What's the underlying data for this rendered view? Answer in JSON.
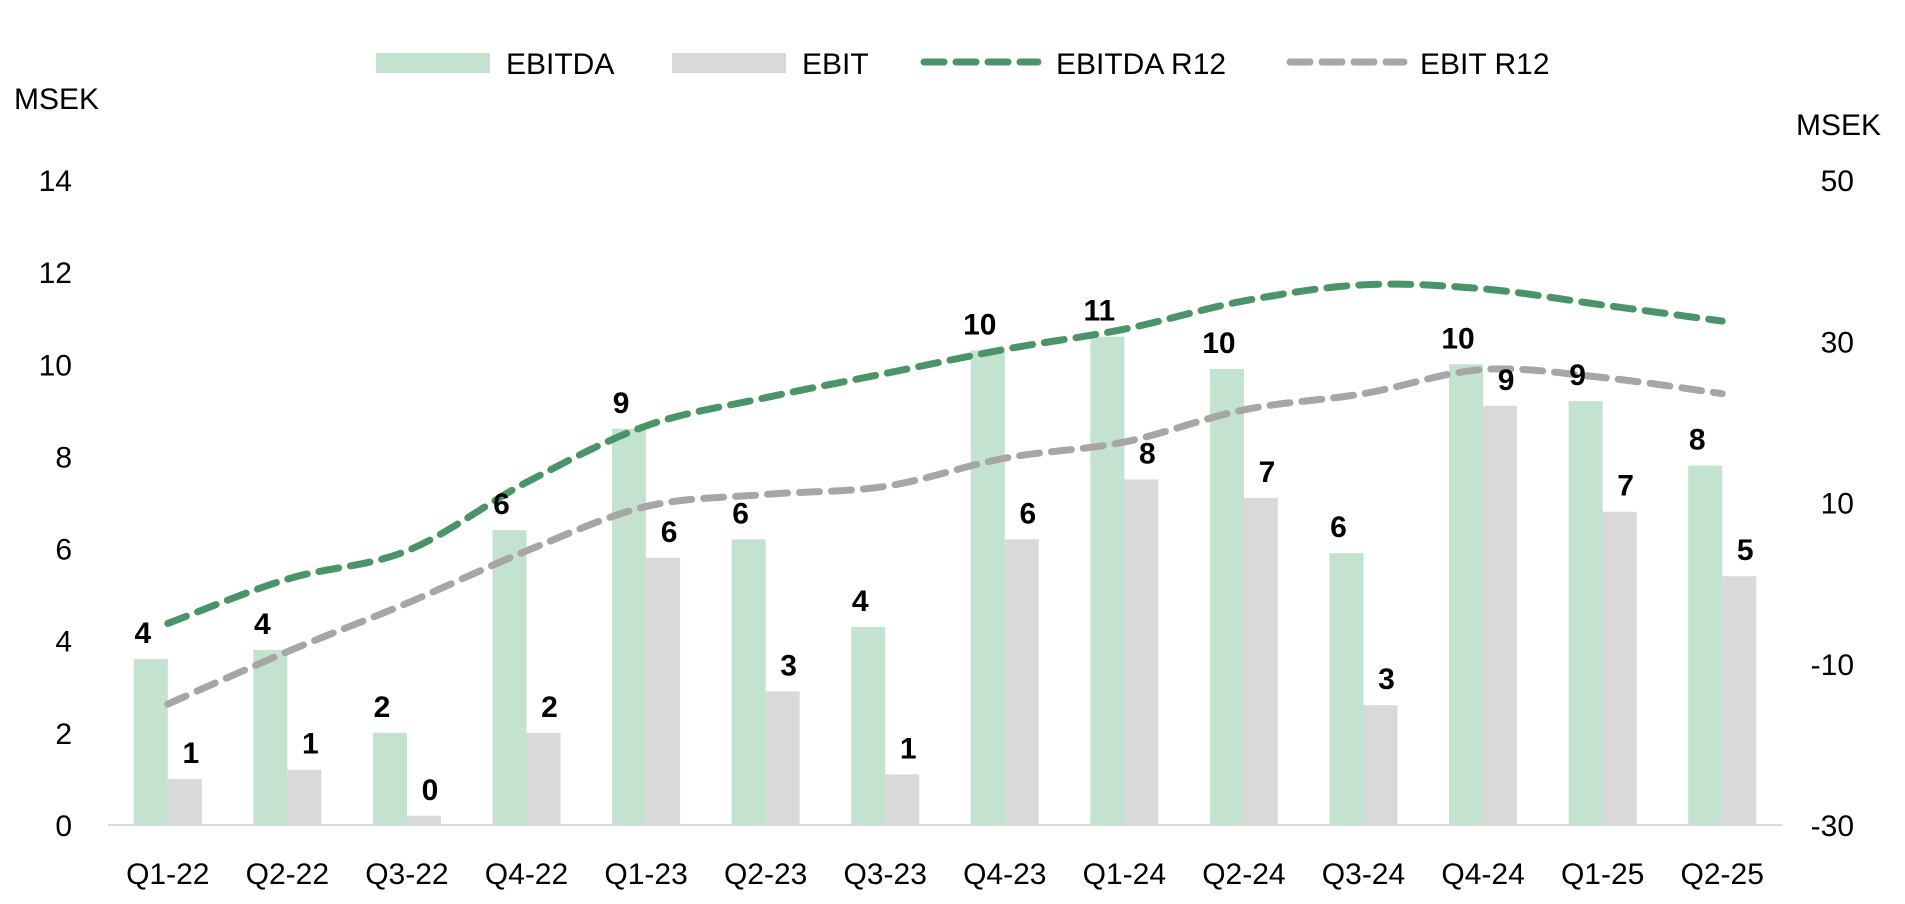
{
  "chart_data": {
    "type": "bar",
    "categories": [
      "Q1-22",
      "Q2-22",
      "Q3-22",
      "Q4-22",
      "Q1-23",
      "Q2-23",
      "Q3-23",
      "Q4-23",
      "Q1-24",
      "Q2-24",
      "Q3-24",
      "Q4-24",
      "Q1-25",
      "Q2-25"
    ],
    "series": [
      {
        "name": "EBITDA",
        "type": "bar",
        "axis": "left",
        "color": "#c3e2d0",
        "values": [
          3.6,
          3.8,
          2.0,
          6.4,
          8.6,
          6.2,
          4.3,
          10.3,
          10.6,
          9.9,
          5.9,
          10.0,
          9.2,
          7.8
        ],
        "labels": [
          "4",
          "4",
          "2",
          "6",
          "9",
          "6",
          "4",
          "10",
          "11",
          "10",
          "6",
          "10",
          "9",
          "8"
        ]
      },
      {
        "name": "EBIT",
        "type": "bar",
        "axis": "left",
        "color": "#d9d9d9",
        "values": [
          1.0,
          1.2,
          0.2,
          2.0,
          5.8,
          2.9,
          1.1,
          6.2,
          7.5,
          7.1,
          2.6,
          9.1,
          6.8,
          5.4
        ],
        "labels": [
          "1",
          "1",
          "0",
          "2",
          "6",
          "3",
          "1",
          "6",
          "8",
          "7",
          "3",
          "9",
          "7",
          "5"
        ]
      },
      {
        "name": "EBITDA R12",
        "type": "line",
        "axis": "right",
        "color": "#4a9468",
        "values": [
          -5.0,
          0.5,
          4.0,
          12.5,
          19.5,
          23.0,
          26.0,
          29.0,
          31.5,
          35.0,
          37.0,
          36.5,
          34.5,
          32.5
        ]
      },
      {
        "name": "EBIT R12",
        "type": "line",
        "axis": "right",
        "color": "#a6a6a6",
        "values": [
          -15.0,
          -8.5,
          -2.5,
          4.0,
          9.5,
          11.0,
          12.0,
          15.5,
          17.5,
          21.5,
          23.5,
          26.5,
          25.5,
          23.5
        ]
      }
    ],
    "left_axis": {
      "label": "MSEK",
      "min": 0,
      "max": 14,
      "ticks": [
        "0",
        "2",
        "4",
        "6",
        "8",
        "10",
        "12",
        "14"
      ]
    },
    "right_axis": {
      "label": "MSEK",
      "min": -30,
      "max": 50,
      "ticks": [
        "-30",
        "-10",
        "10",
        "30",
        "50"
      ]
    },
    "grid": false,
    "legend_position": "top"
  }
}
